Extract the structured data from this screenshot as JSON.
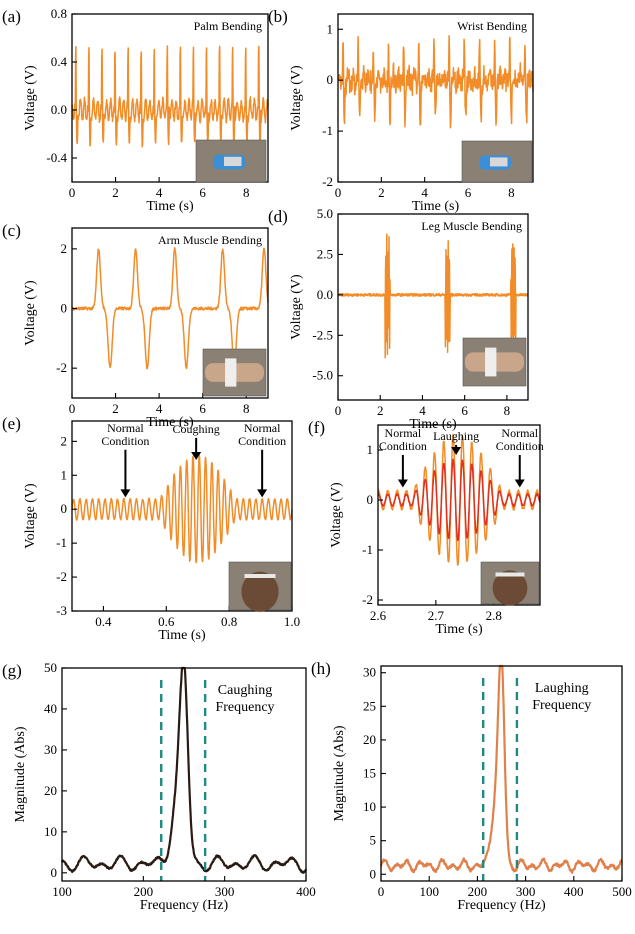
{
  "chart_data": [
    {
      "panel": "(a)",
      "type": "line",
      "title": "Palm Bending",
      "xlabel": "Time (s)",
      "ylabel": "Voltage (V)",
      "xlim": [
        0,
        9
      ],
      "ylim": [
        -0.6,
        0.8
      ],
      "xticks": [
        "0",
        "2",
        "4",
        "6",
        "8"
      ],
      "xtick_vals": [
        0,
        2,
        4,
        6,
        8
      ],
      "yticks": [
        "0.8",
        "0.4",
        "0.0",
        "-0.4"
      ],
      "ytick_vals": [
        0.8,
        0.4,
        0,
        -0.4
      ],
      "signal": {
        "kind": "pulses",
        "period": 0.6,
        "start": 0.15,
        "amp_pos": 0.55,
        "amp_neg": -0.3,
        "noise": 0.03
      },
      "inset": "hand-icon",
      "series": [
        {
          "color": "#f28c28"
        }
      ]
    },
    {
      "panel": "(b)",
      "type": "line",
      "title": "Wrist Bending",
      "xlabel": "Time (s)",
      "ylabel": "Voltage (V)",
      "xlim": [
        0,
        9
      ],
      "ylim": [
        -2,
        1.3
      ],
      "xticks": [
        "0",
        "2",
        "4",
        "6",
        "8"
      ],
      "xtick_vals": [
        0,
        2,
        4,
        6,
        8
      ],
      "yticks": [
        "1",
        "0",
        "-1",
        "-2"
      ],
      "ytick_vals": [
        1,
        0,
        -1,
        -2
      ],
      "signal": {
        "kind": "noisy",
        "period": 0.7,
        "start": 0.2,
        "amp_pos": 0.7,
        "amp_neg": -0.8,
        "noise": 0.18
      },
      "inset": "hand-icon",
      "series": [
        {
          "color": "#f28c28"
        }
      ]
    },
    {
      "panel": "(c)",
      "type": "line",
      "title": "Arm Muscle Bending",
      "xlabel": "Time (s)",
      "ylabel": "Voltage (V)",
      "xlim": [
        0,
        9
      ],
      "ylim": [
        -3,
        2.7
      ],
      "xticks": [
        "0",
        "2",
        "4",
        "6",
        "8"
      ],
      "xtick_vals": [
        0,
        2,
        4,
        6,
        8
      ],
      "yticks": [
        "2",
        "0",
        "-2"
      ],
      "ytick_vals": [
        2,
        0,
        -2
      ],
      "signal": {
        "kind": "bipolar",
        "centers": [
          1.3,
          3.0,
          4.8,
          7.0,
          8.9
        ],
        "amp_pos": 2.0,
        "amp_neg": -2.0,
        "noise": 0.05
      },
      "inset": "arm-icon",
      "series": [
        {
          "color": "#f28c28"
        }
      ]
    },
    {
      "panel": "(d)",
      "type": "line",
      "title": "Leg Muscle Bending",
      "xlabel": "Time (s)",
      "ylabel": "Voltage (V)",
      "xlim": [
        0,
        9
      ],
      "ylim": [
        -6.5,
        5
      ],
      "xticks": [
        "0",
        "2",
        "4",
        "6",
        "8"
      ],
      "xtick_vals": [
        0,
        2,
        4,
        6,
        8
      ],
      "yticks": [
        "5.0",
        "2.5",
        "0.0",
        "-2.5",
        "-5.0"
      ],
      "ytick_vals": [
        5,
        2.5,
        0,
        -2.5,
        -5
      ],
      "signal": {
        "kind": "bursts",
        "centers": [
          2.35,
          5.2,
          8.3
        ],
        "width": 0.25,
        "amp": 4.0,
        "noise": 0.08
      },
      "inset": "leg-icon",
      "series": [
        {
          "color": "#f28c28"
        }
      ]
    },
    {
      "panel": "(e)",
      "type": "line",
      "title": "",
      "xlabel": "Time (s)",
      "ylabel": "Voltage (V)",
      "xlim": [
        0.3,
        1.0
      ],
      "ylim": [
        -3,
        2.6
      ],
      "xticks": [
        "0.4",
        "0.6",
        "0.8",
        "1.0"
      ],
      "xtick_vals": [
        0.4,
        0.6,
        0.8,
        1.0
      ],
      "yticks": [
        "2",
        "1",
        "0",
        "-1",
        "-2",
        "-3"
      ],
      "ytick_vals": [
        2,
        1,
        0,
        -1,
        -2,
        -3
      ],
      "signal": {
        "kind": "burst_osc",
        "freq": 50,
        "base_amp": 0.3,
        "burst_amp": 1.6,
        "burst_start": 0.58,
        "burst_end": 0.82
      },
      "annotations": [
        {
          "lines": [
            "Normal",
            "Condition"
          ],
          "x": 0.47,
          "y_text": 1.9,
          "y_arrow": 0.35
        },
        {
          "lines": [
            "Coughing"
          ],
          "x": 0.695,
          "y_text": 2.25,
          "y_arrow": 1.45
        },
        {
          "lines": [
            "Normal",
            "Condition"
          ],
          "x": 0.905,
          "y_text": 1.9,
          "y_arrow": 0.35
        }
      ],
      "inset": "face-icon",
      "series": [
        {
          "color": "#f28c28"
        }
      ]
    },
    {
      "panel": "(f)",
      "type": "line",
      "title": "",
      "xlabel": "Time (s)",
      "ylabel": "Voltage (V)",
      "xlim": [
        2.6,
        2.88
      ],
      "ylim": [
        -2.1,
        1.5
      ],
      "xticks": [
        "2.6",
        "2.7",
        "2.8"
      ],
      "xtick_vals": [
        2.6,
        2.7,
        2.8
      ],
      "yticks": [
        "1",
        "0",
        "-1",
        "-2"
      ],
      "ytick_vals": [
        1,
        0,
        -1,
        -2
      ],
      "signal": {
        "kind": "burst_osc",
        "freq": 62,
        "base_amp": 0.18,
        "burst_amp": 1.3,
        "burst_start": 2.66,
        "burst_end": 2.815
      },
      "annotations": [
        {
          "lines": [
            "Normal",
            "Condition"
          ],
          "x": 2.643,
          "y_text": 1.0,
          "y_arrow": 0.25
        },
        {
          "lines": [
            "Laughing"
          ],
          "x": 2.735,
          "y_text": 1.2,
          "y_arrow": 0.9
        },
        {
          "lines": [
            "Normal",
            "Condition"
          ],
          "x": 2.845,
          "y_text": 1.0,
          "y_arrow": 0.25
        }
      ],
      "inset": "face-icon",
      "series": [
        {
          "color": "#f28c28"
        },
        {
          "color": "#e0301e",
          "scale": 0.62
        }
      ]
    },
    {
      "panel": "(g)",
      "type": "line",
      "title": "",
      "xlabel": "Frequency (Hz)",
      "ylabel": "Magnitude (Abs)",
      "xlim": [
        100,
        400
      ],
      "ylim": [
        -2,
        50
      ],
      "xticks": [
        "100",
        "200",
        "300",
        "400"
      ],
      "xtick_vals": [
        100,
        200,
        300,
        400
      ],
      "yticks": [
        "50",
        "40",
        "30",
        "20",
        "10",
        "0"
      ],
      "ytick_vals": [
        50,
        40,
        30,
        20,
        10,
        0
      ],
      "signal": {
        "kind": "spectrum",
        "peak_x": 250,
        "peak_y": 45,
        "peak_w": 7,
        "shoulder_x": 240,
        "shoulder_y": 14,
        "shoulder_w": 9,
        "base": 2.2,
        "ripple": 2.0
      },
      "annotation_text": [
        "Caughing",
        "Frequency"
      ],
      "vlines": [
        222,
        276
      ],
      "series": [
        {
          "color": "#2b1a14"
        }
      ]
    },
    {
      "panel": "(h)",
      "type": "line",
      "title": "",
      "xlabel": "Frequency (Hz)",
      "ylabel": "Magnitude (Abs)",
      "xlim": [
        0,
        500
      ],
      "ylim": [
        -1,
        31
      ],
      "xticks": [
        "0",
        "100",
        "200",
        "300",
        "400",
        "500"
      ],
      "xtick_vals": [
        0,
        100,
        200,
        300,
        400,
        500
      ],
      "yticks": [
        "30",
        "25",
        "20",
        "15",
        "10",
        "5",
        "0"
      ],
      "ytick_vals": [
        30,
        25,
        20,
        15,
        10,
        5,
        0
      ],
      "signal": {
        "kind": "spectrum",
        "peak_x": 250,
        "peak_y": 28.5,
        "peak_w": 9,
        "shoulder_x": 237,
        "shoulder_y": 9,
        "shoulder_w": 12,
        "base": 1.3,
        "ripple": 0.9
      },
      "annotation_text": [
        "Laughing",
        "Frequency"
      ],
      "vlines": [
        212,
        282
      ],
      "series": [
        {
          "color": "#e0804a"
        }
      ]
    }
  ],
  "colors": {
    "vline": "#1f8a80",
    "inset_bg": "#8a8074"
  }
}
